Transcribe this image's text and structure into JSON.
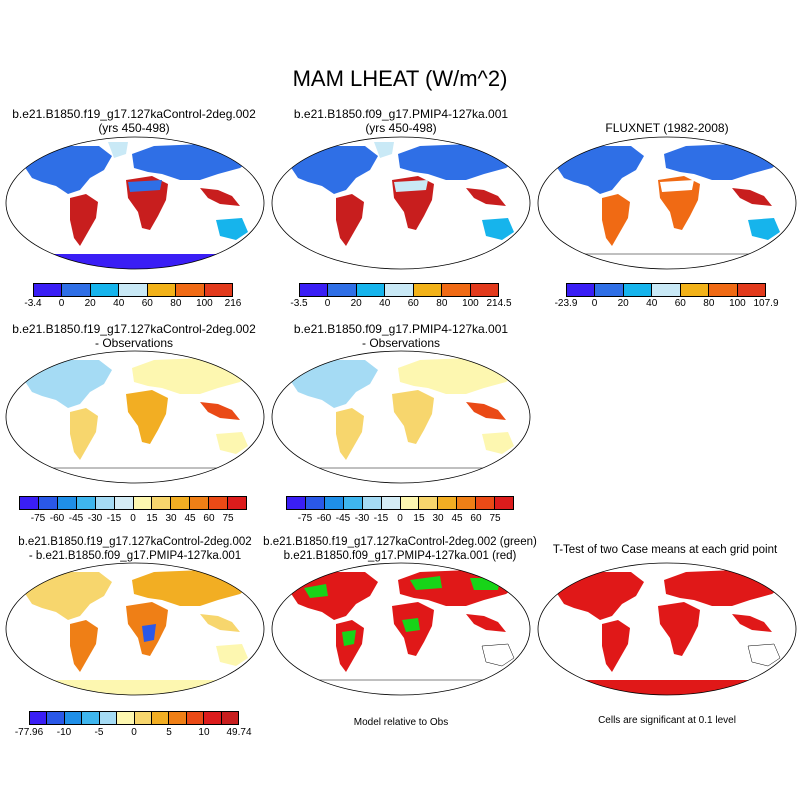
{
  "title": "MAM LHEAT (W/m^2)",
  "panels": {
    "p1": {
      "line1": "b.e21.B1850.f19_g17.127kaControl-2deg.002",
      "line2": "(yrs 450-498)"
    },
    "p2": {
      "line1": "b.e21.B1850.f09_g17.PMIP4-127ka.001",
      "line2": "(yrs 450-498)"
    },
    "p3": {
      "line1": "FLUXNET (1982-2008)"
    },
    "p4": {
      "line1": "b.e21.B1850.f19_g17.127kaControl-2deg.002",
      "line2": "- Observations"
    },
    "p5": {
      "line1": "b.e21.B1850.f09_g17.PMIP4-127ka.001",
      "line2": "- Observations"
    },
    "p7": {
      "line1": "b.e21.B1850.f19_g17.127kaControl-2deg.002",
      "line2": "- b.e21.B1850.f09_g17.PMIP4-127ka.001"
    },
    "p8": {
      "line1": "b.e21.B1850.f19_g17.127kaControl-2deg.002 (green)",
      "line2": "b.e21.B1850.f09_g17.PMIP4-127ka.001 (red)"
    },
    "p9": {
      "line1": "T-Test of two Case means at each grid point"
    }
  },
  "colorbars": {
    "cb1": {
      "labels": [
        "-3.4",
        "0",
        "20",
        "40",
        "60",
        "80",
        "100",
        "216"
      ]
    },
    "cb2": {
      "labels": [
        "-3.5",
        "0",
        "20",
        "40",
        "60",
        "80",
        "100",
        "214.5"
      ]
    },
    "cb3": {
      "labels": [
        "-23.9",
        "0",
        "20",
        "40",
        "60",
        "80",
        "100",
        "107.9"
      ]
    },
    "cb4": {
      "labels": [
        "-75",
        "-60",
        "-45",
        "-30",
        "-15",
        "0",
        "15",
        "30",
        "45",
        "60",
        "75"
      ]
    },
    "cb5": {
      "labels": [
        "-75",
        "-60",
        "-45",
        "-30",
        "-15",
        "0",
        "15",
        "30",
        "45",
        "60",
        "75"
      ]
    },
    "cb7": {
      "labels": [
        "-77.96",
        "-10",
        "-5",
        "0",
        "5",
        "10",
        "49.74"
      ]
    }
  },
  "notes": {
    "p8": "Model relative to Obs",
    "p9": "Cells are significant at 0.1 level"
  },
  "colors": {
    "abs": [
      "#3a1ef5",
      "#2f6fe6",
      "#16b4ec",
      "#c9e9f6",
      "#f2b219",
      "#f06a14",
      "#e23a1c",
      "#c81e1e"
    ],
    "diff": [
      "#3a1ef5",
      "#2a58e8",
      "#1f8fe8",
      "#3fb6ee",
      "#a5dbf4",
      "#d4ecf5",
      "#fdf7b0",
      "#f7d66d",
      "#f2ae23",
      "#ef7f16",
      "#ea4a16",
      "#dc1c1c",
      "#b51e1e"
    ],
    "diff2": [
      "#3a1ef5",
      "#2a58e8",
      "#1f8fe8",
      "#3fb6ee",
      "#a5dbf4",
      "#fdf7b0",
      "#f7d66d",
      "#f2ae23",
      "#ef7f16",
      "#ea4a16",
      "#dc1c1c",
      "#c81e1e"
    ]
  }
}
